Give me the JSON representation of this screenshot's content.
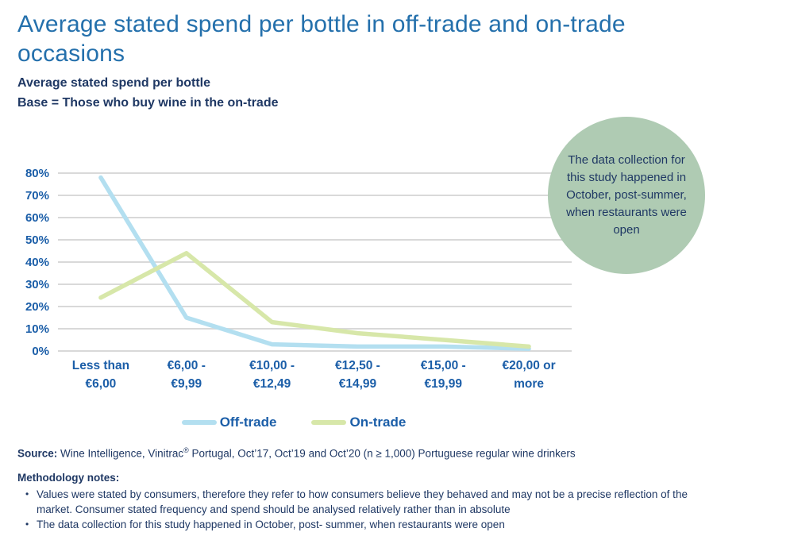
{
  "slide": {
    "title": "Average stated spend per bottle in off-trade and on-trade occasions",
    "subtitle_line1": "Average stated spend per bottle",
    "subtitle_line2": "Base = Those who buy wine in the on-trade",
    "title_color": "#2470AC",
    "body_text_color": "#1F3864",
    "background_color": "#FFFFFF"
  },
  "chart_data": {
    "type": "line",
    "title": "Average stated spend per bottle in off-trade and on-trade occasions",
    "xlabel": "",
    "ylabel": "",
    "categories": [
      "Less than €6,00",
      "€6,00 - €9,99",
      "€10,00 - €12,49",
      "€12,50 - €14,99",
      "€15,00 - €19,99",
      "€20,00 or more"
    ],
    "categories_display": [
      [
        "Less than",
        "€6,00"
      ],
      [
        "€6,00 -",
        "€9,99"
      ],
      [
        "€10,00 -",
        "€12,49"
      ],
      [
        "€12,50 -",
        "€14,99"
      ],
      [
        "€15,00 -",
        "€19,99"
      ],
      [
        "€20,00 or",
        "more"
      ]
    ],
    "series": [
      {
        "name": "Off-trade",
        "color": "#B3DFF0",
        "values": [
          78,
          15,
          3,
          2,
          2,
          1
        ]
      },
      {
        "name": "On-trade",
        "color": "#D7E7A9",
        "values": [
          24,
          44,
          13,
          8,
          5,
          2
        ]
      }
    ],
    "ylim": [
      0,
      80
    ],
    "ytick_step": 10,
    "ytick_labels": [
      "0%",
      "10%",
      "20%",
      "30%",
      "40%",
      "50%",
      "60%",
      "70%",
      "80%"
    ],
    "grid": true,
    "gridline_color": "#D9D9D9",
    "axis_label_color": "#1B5EA8",
    "legend_position": "bottom"
  },
  "annotation_circle": {
    "text": "The data collection for this study happened in October, post-summer, when restaurants were open",
    "background_color": "#AFCBB3",
    "text_color": "#1F3864"
  },
  "source": {
    "label": "Source:",
    "pre": " Wine Intelligence, Vinitrac",
    "reg": "®",
    "post": " Portugal, Oct’17, Oct’19 and Oct’20 (n ≥  1,000) Portuguese regular wine drinkers"
  },
  "methodology": {
    "heading": "Methodology notes:",
    "bullets": [
      "Values were stated by consumers, therefore they refer to how consumers believe they behaved and may not be a precise reflection of the market. Consumer stated frequency and spend should be analysed relatively rather than in absolute",
      "The data collection for this study happened in October, post- summer, when restaurants were open"
    ]
  }
}
